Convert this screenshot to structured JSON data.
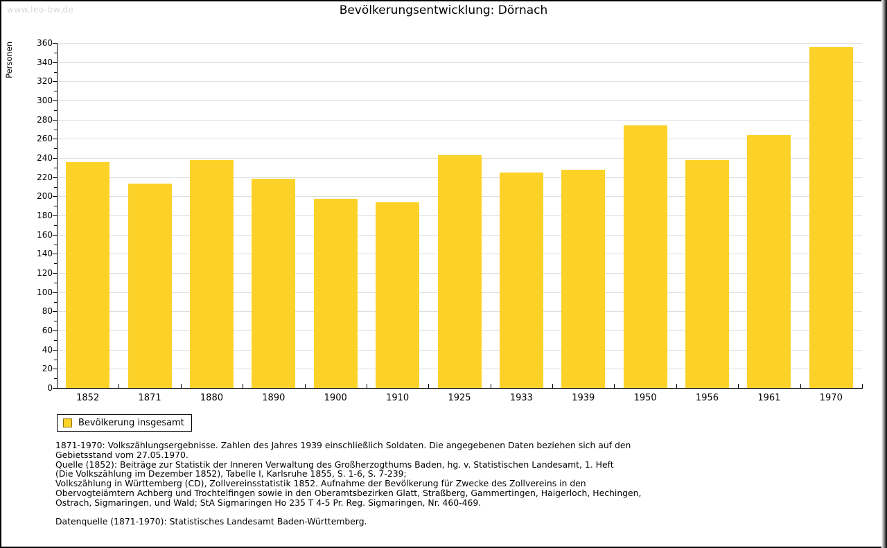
{
  "page": {
    "watermark": "www.leo-bw.de",
    "title": "Bevölkerungsentwicklung: Dörnach"
  },
  "chart_data": {
    "type": "bar",
    "title": "Bevölkerungsentwicklung: Dörnach",
    "xlabel": "",
    "ylabel": "Personen",
    "categories": [
      "1852",
      "1871",
      "1880",
      "1890",
      "1900",
      "1910",
      "1925",
      "1933",
      "1939",
      "1950",
      "1956",
      "1961",
      "1970"
    ],
    "series": [
      {
        "name": "Bevölkerung insgesamt",
        "values": [
          236,
          213,
          238,
          218,
          197,
          194,
          243,
          225,
          228,
          274,
          238,
          264,
          356
        ]
      }
    ],
    "ylim": [
      0,
      360
    ],
    "ytick_step": 20,
    "yminor_step": 10,
    "grid": true,
    "legend_position": "below-left"
  },
  "legend": {
    "label": "Bevölkerung insgesamt"
  },
  "footnote_lines": [
    "1871-1970: Volkszählungsergebnisse. Zahlen des Jahres 1939 einschließlich Soldaten. Die angegebenen Daten beziehen sich auf den",
    "Gebietsstand vom 27.05.1970.",
    "Quelle (1852): Beiträge zur Statistik der Inneren Verwaltung des Großherzogthums Baden, hg. v. Statistischen Landesamt, 1. Heft",
    "(Die Volkszählung im Dezember 1852), Tabelle I, Karlsruhe 1855, S. 1-6, S. 7-239;",
    "Volkszählung in Württemberg (CD), Zollvereinsstatistik 1852. Aufnahme der Bevölkerung für Zwecke des Zollvereins in den",
    "Obervogteiämtern Achberg und Trochtelfingen sowie in den Oberamtsbezirken Glatt, Straßberg, Gammertingen, Haigerloch, Hechingen,",
    "Ostrach, Sigmaringen, und Wald; StA Sigmaringen Ho 235 T 4-5 Pr. Reg. Sigmaringen, Nr. 460-469.",
    "",
    "Datenquelle (1871-1970): Statistisches Landesamt Baden-Württemberg."
  ],
  "colors": {
    "bar": "#FCD228",
    "swatch_border": "#8A7500",
    "gridline": "#DDDDDD",
    "watermark": "#D8D8D8",
    "axis": "#000000",
    "background": "#FFFFFF"
  }
}
